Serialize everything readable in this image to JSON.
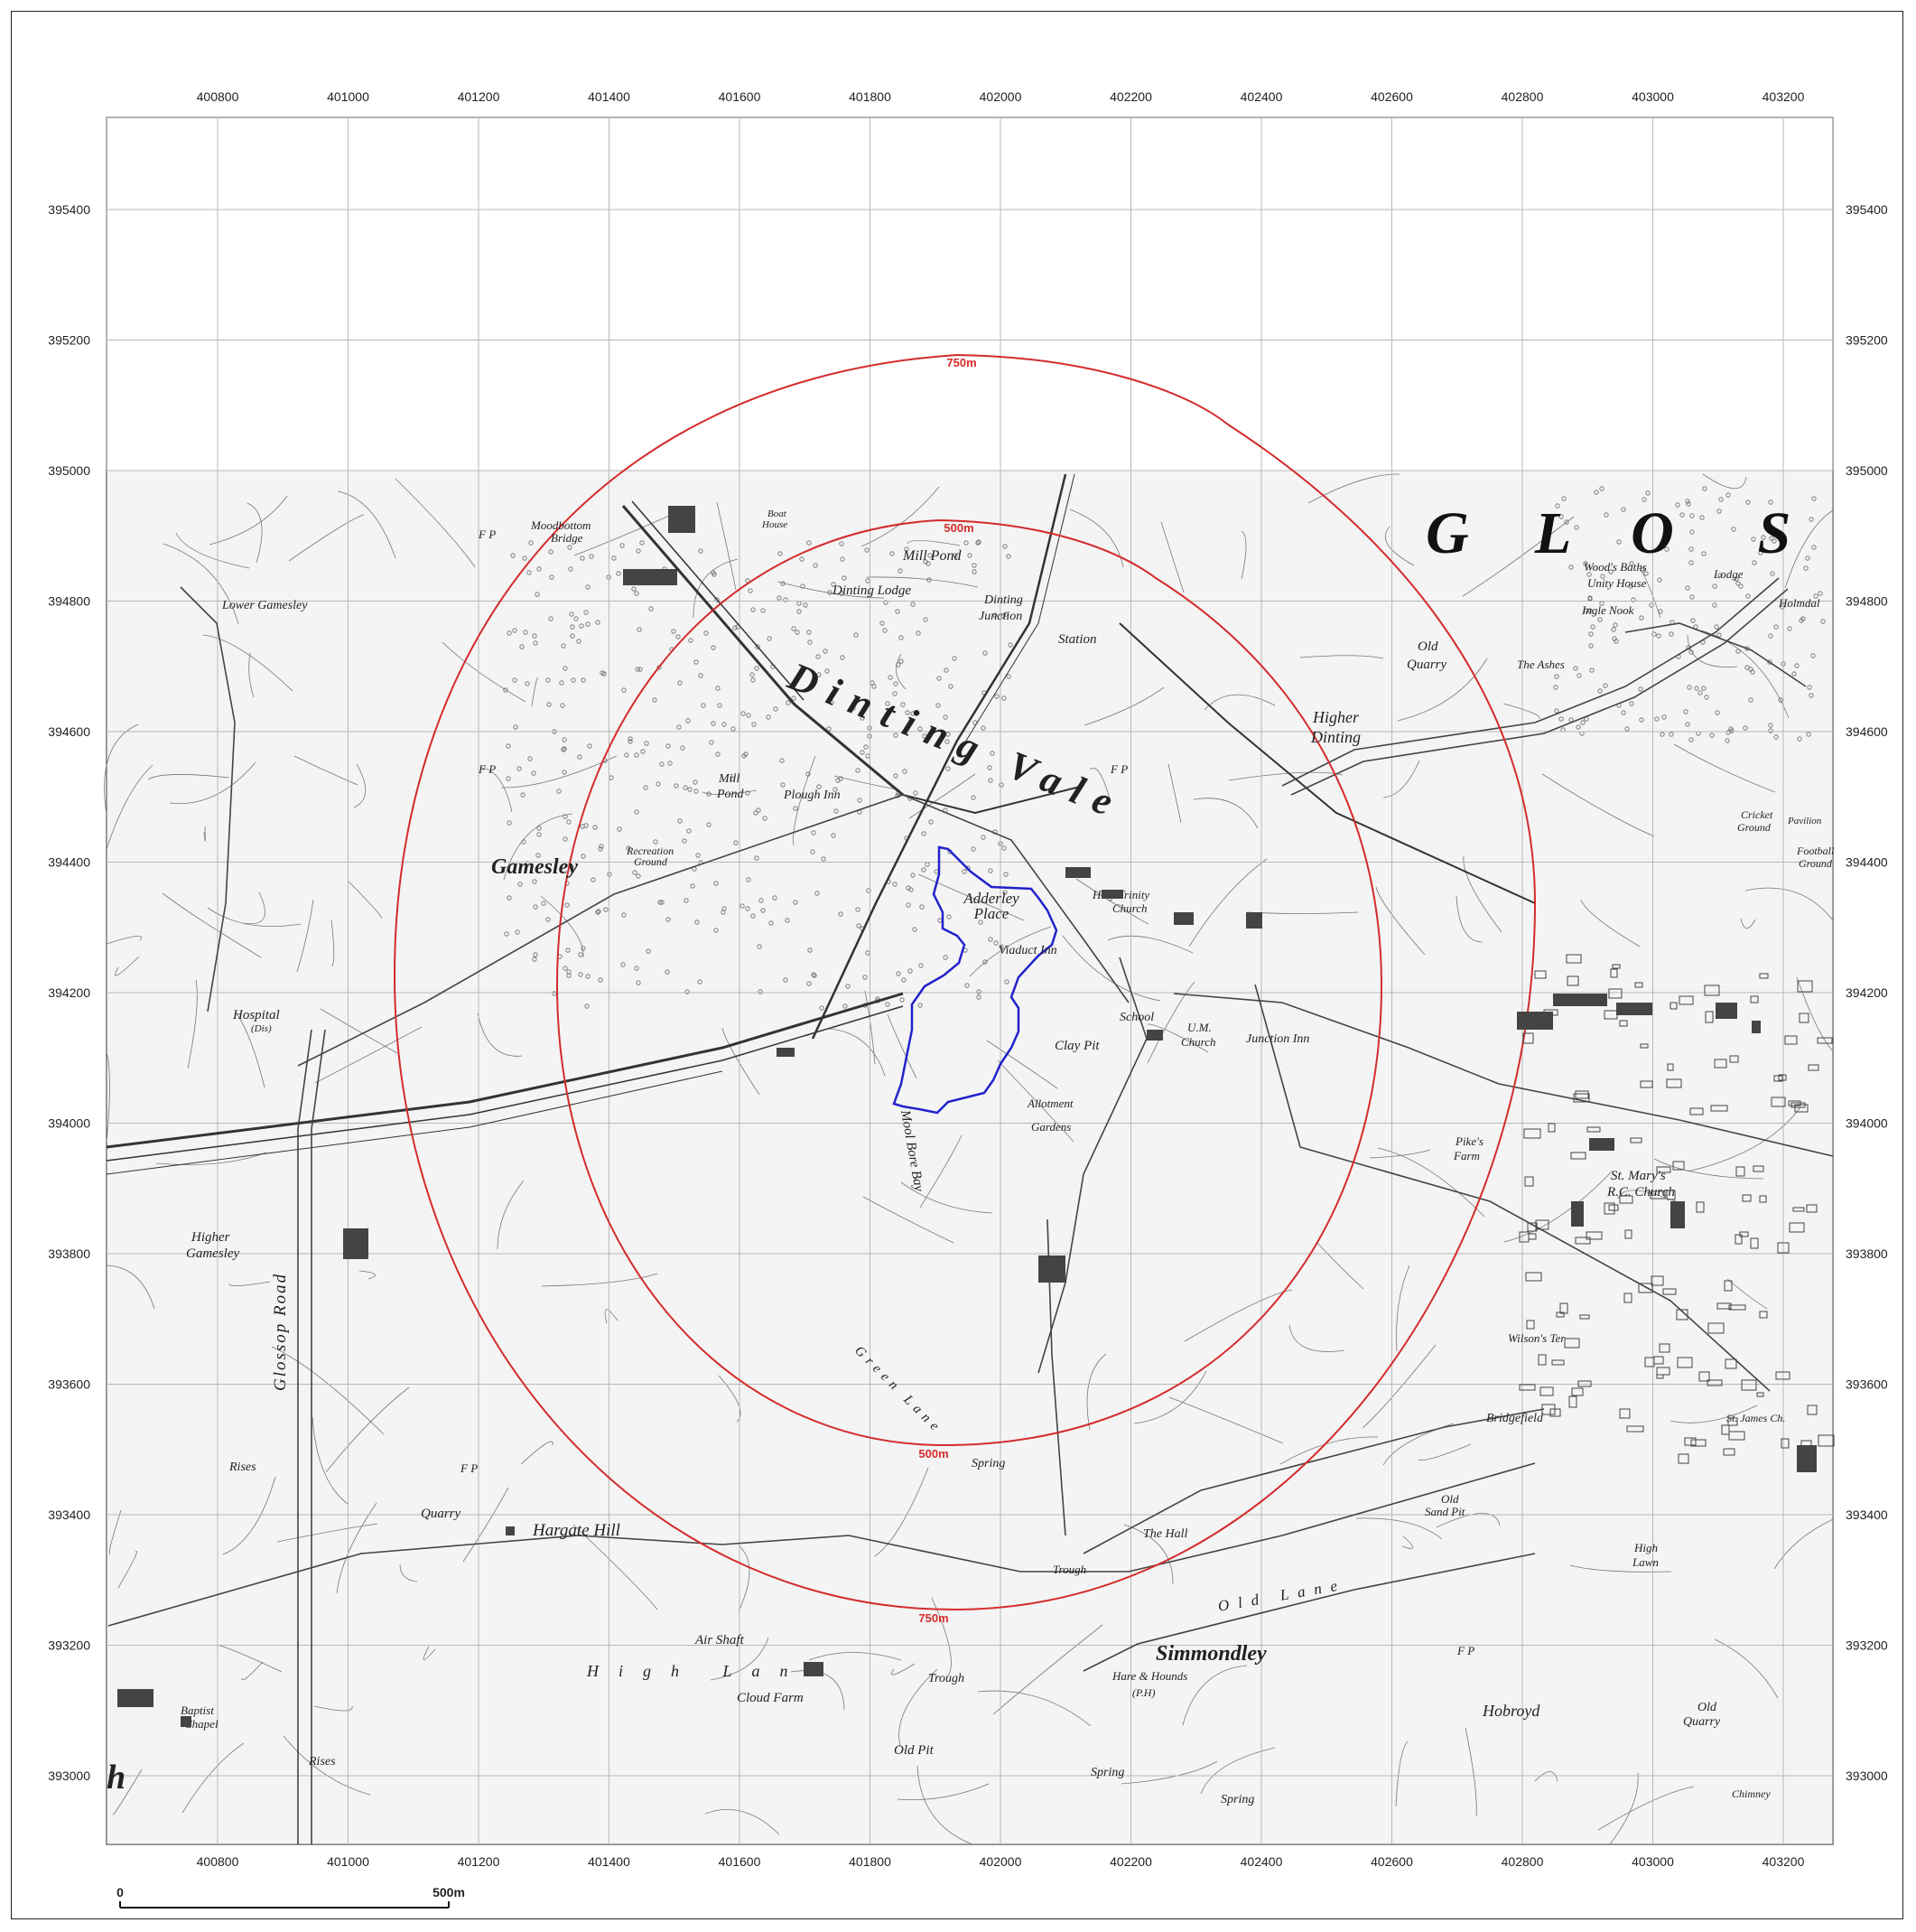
{
  "map": {
    "easting_ticks": [
      "400800",
      "401000",
      "401200",
      "401400",
      "401600",
      "401800",
      "402000",
      "402200",
      "402400",
      "402600",
      "402800",
      "403000",
      "403200"
    ],
    "northing_ticks": [
      "395400",
      "395200",
      "395000",
      "394800",
      "394600",
      "394400",
      "394200",
      "394000",
      "393800",
      "393600",
      "393400",
      "393200",
      "393000"
    ],
    "buffers": {
      "outer_label": "750m",
      "inner_label": "500m",
      "color": "#d42b2b"
    },
    "site": {
      "label_line1": "Adderley",
      "label_line2": "Place",
      "outline_color": "#2222cc"
    },
    "scalebar": {
      "start": "0",
      "end": "500m"
    },
    "places": {
      "glossop_letters": [
        "G",
        "L",
        "O",
        "S"
      ],
      "gamesley": "Gamesley",
      "lower_gamesley": "Lower Gamesley",
      "higher_gamesley": "Higher",
      "higher_gamesley_2": "Gamesley",
      "moodstock": "Moodbottom",
      "moodstock_2": "Bridge",
      "dinting_vale": "Dinting Vale",
      "dinting_lodge": "Dinting Lodge",
      "dinting_junction": "Dinting",
      "dinting_junction_2": "Junction",
      "station": "Station",
      "higher_dinting": "Higher",
      "higher_dinting_2": "Dinting",
      "mill_pond": "Mill Pond",
      "mill_pond_2": "Mill",
      "mill_pond_3": "Pond",
      "plough_inn": "Plough Inn",
      "viaduct_inn": "Viaduct Inn",
      "clay_pit": "Clay Pit",
      "school": "School",
      "holy_trinity": "Holy Trinity",
      "holy_trinity_2": "Church",
      "um_church": "U.M.",
      "um_church_2": "Church",
      "junction_inn": "Junction Inn",
      "allotment": "Allotment",
      "allotment_2": "Gardens",
      "old_quarry": "Old",
      "old_quarry_2": "Quarry",
      "hospital": "Hospital",
      "hospital_2": "(Dis)",
      "recreation": "Recreation",
      "recreation_2": "Ground",
      "glossop_road": "Glossop Road",
      "quarry": "Quarry",
      "rises": "Rises",
      "hargate_hill": "Hargate Hill",
      "air_shaft": "Air Shaft",
      "high_lane": "High Lane",
      "cloud_farm": "Cloud Farm",
      "trough": "Trough",
      "old_pit": "Old Pit",
      "spring": "Spring",
      "simmondley": "Simmondley",
      "hare_hounds": "Hare & Hounds",
      "hare_hounds_2": "(P.H)",
      "old_lane": "Old Lane",
      "the_hall": "The Hall",
      "old_sand_pit": "Old",
      "old_sand_pit_2": "Sand Pit",
      "bridgefield": "Bridgefield",
      "high_lawn": "High",
      "high_lawn_2": "Lawn",
      "wilsons_ter": "Wilson's Ter",
      "pikes_farm": "Pike's",
      "pikes_farm_2": "Farm",
      "st_marys": "St. Mary's",
      "st_marys_2": "R.C. Church",
      "st_james": "St. James Ch.",
      "hobroyd": "Hobroyd",
      "woods_baths": "Wood's Baths",
      "unity_house": "Unity House",
      "ingle_nook": "Ingle Nook",
      "the_ashes": "The Ashes",
      "lodge": "Lodge",
      "holmdale": "Holmdal",
      "cricket_ground": "Cricket",
      "cricket_ground_2": "Ground",
      "pavilion": "Pavilion",
      "football_ground": "Football",
      "football_ground_2": "Ground",
      "baptist_chapel": "Baptist",
      "baptist_chapel_2": "Chapel",
      "mool_bore_bay": "Mool Bore Bay",
      "green_lane": "Green Lane",
      "boat_house": "Boat",
      "boat_house_2": "House",
      "chimney": "Chimney",
      "old_quarry_se": "Old",
      "old_quarry_se_2": "Quarry",
      "h_edge": "h",
      "fp": "F P"
    }
  }
}
